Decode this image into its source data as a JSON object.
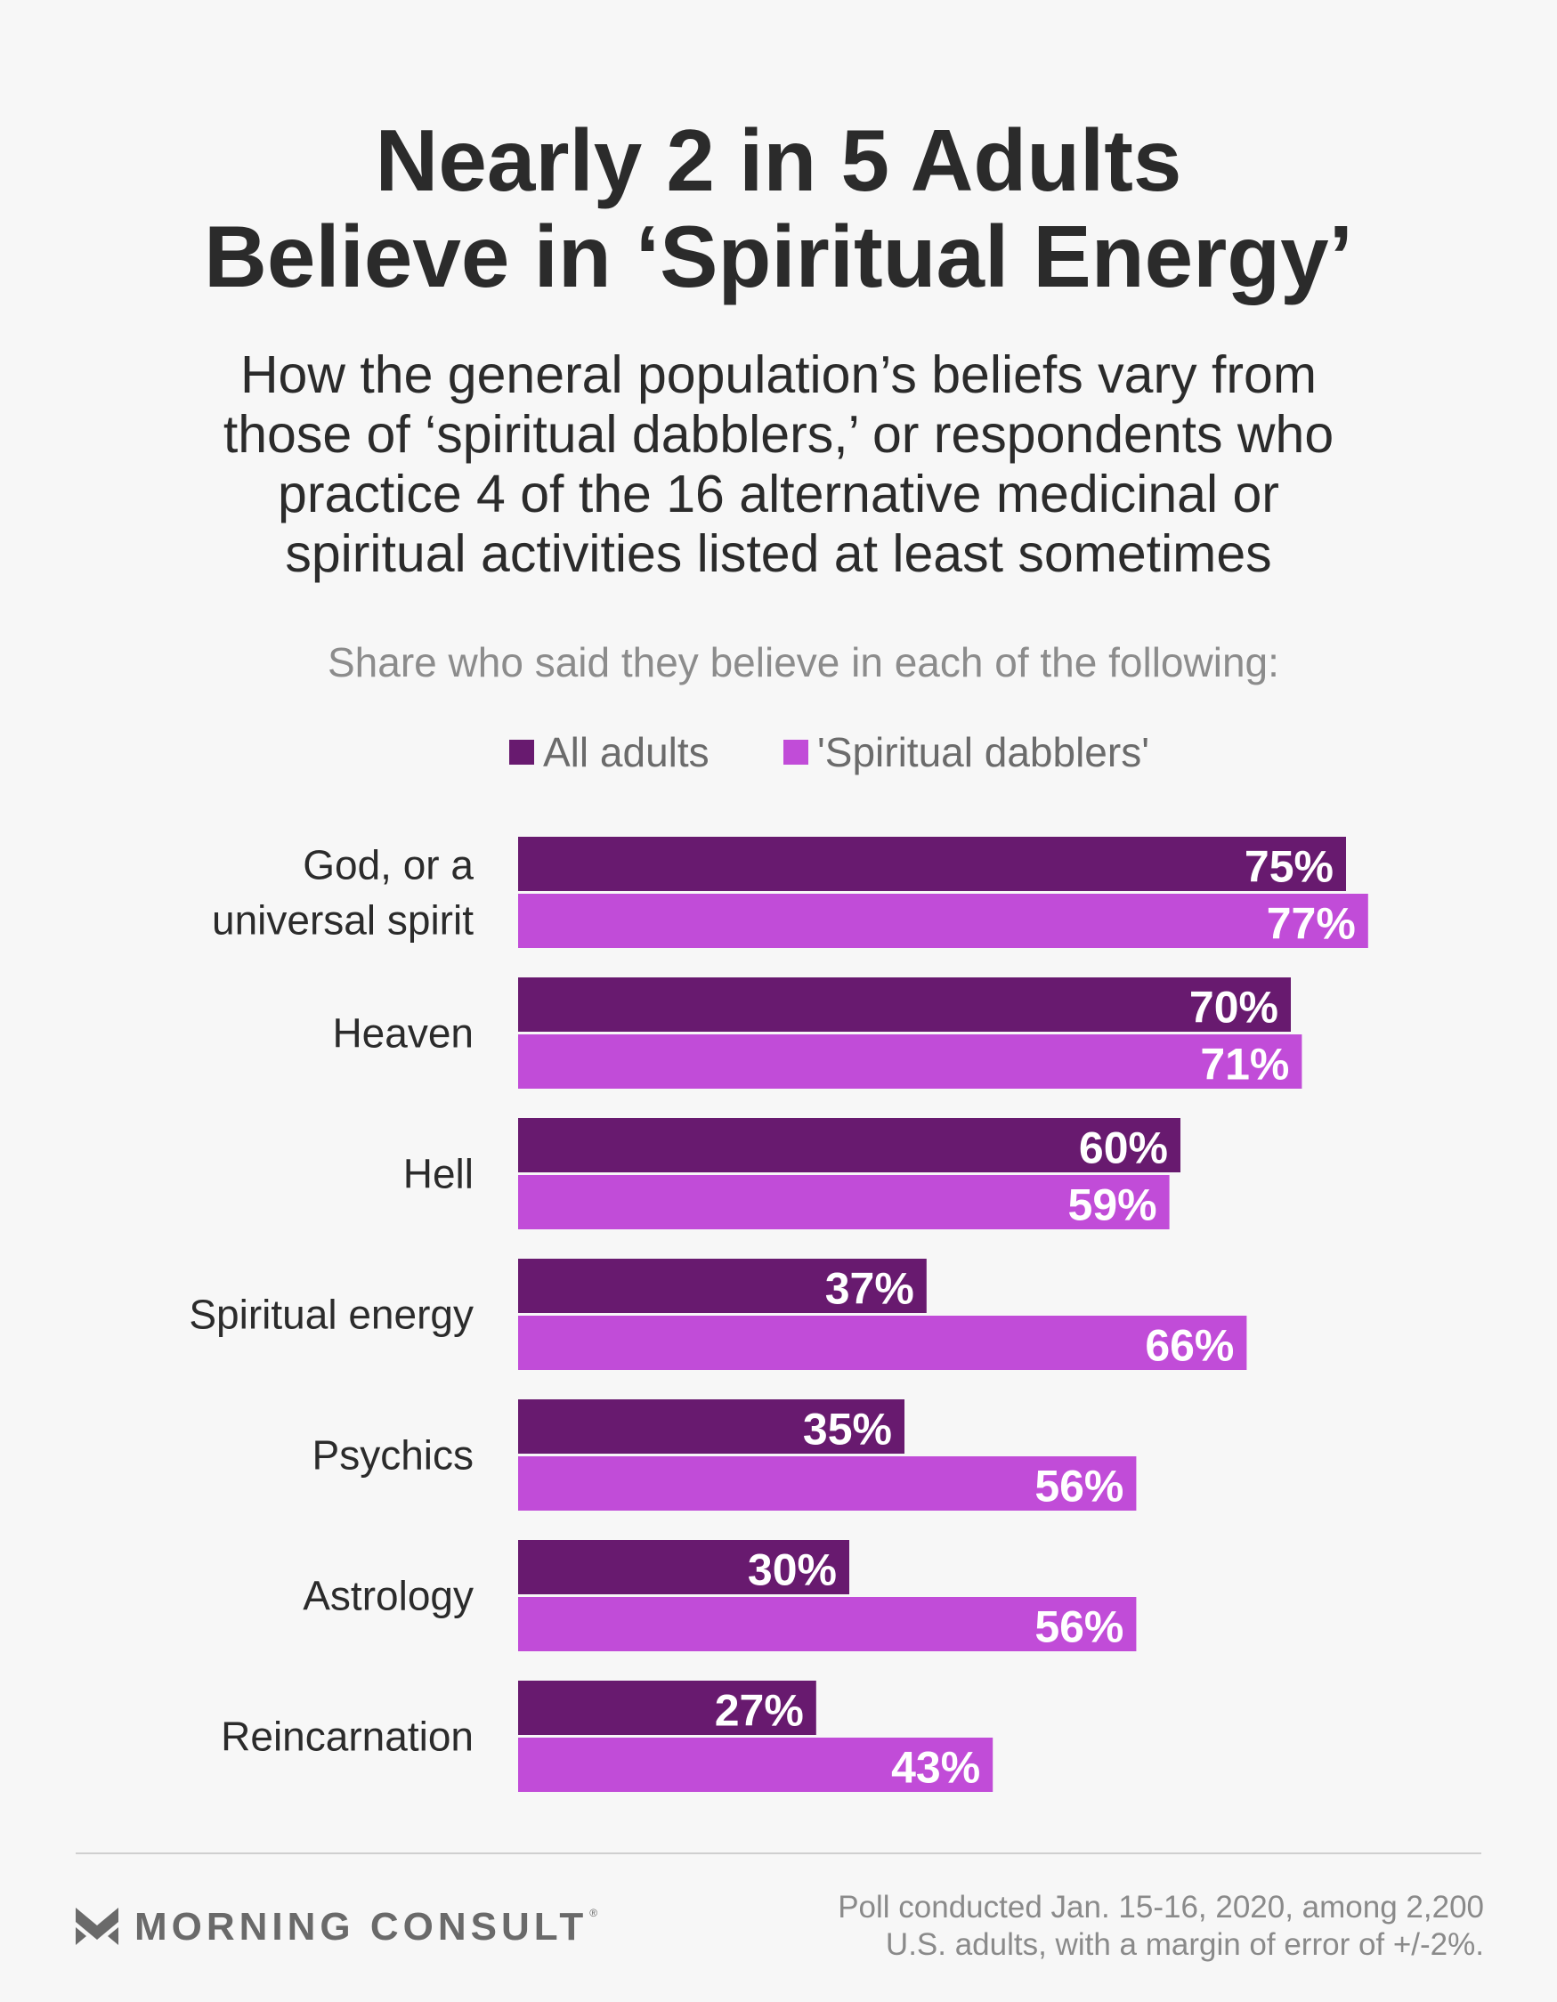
{
  "header": {
    "title_line1": "Nearly 2 in 5 Adults",
    "title_line2": "Believe in ‘Spiritual Energy’",
    "subtitle_line1": "How the general population’s beliefs vary from",
    "subtitle_line2": "those of ‘spiritual dabblers,’ or respondents who",
    "subtitle_line3": "practice 4 of the 16 alternative medicinal or",
    "subtitle_line4": "spiritual activities listed at least sometimes",
    "prompt": "Share who said they believe in each of the following:"
  },
  "colors": {
    "all_adults": "#681a6f",
    "spiritual_dabblers": "#c14cd8",
    "text_dark": "#2b2b2b",
    "muted": "#8c8c8c"
  },
  "chart_data": {
    "type": "bar",
    "orientation": "horizontal",
    "categories": [
      [
        "God, or a",
        "universal spirit"
      ],
      [
        "Heaven"
      ],
      [
        "Hell"
      ],
      [
        "Spiritual energy"
      ],
      [
        "Psychics"
      ],
      [
        "Astrology"
      ],
      [
        "Reincarnation"
      ]
    ],
    "series": [
      {
        "name": "All adults",
        "values": [
          75,
          70,
          60,
          37,
          35,
          30,
          27
        ],
        "labels": [
          "75%",
          "70%",
          "60%",
          "37%",
          "35%",
          "30%",
          "27%"
        ]
      },
      {
        "name": "'Spiritual dabblers'",
        "values": [
          77,
          71,
          59,
          66,
          56,
          56,
          43
        ],
        "labels": [
          "77%",
          "71%",
          "59%",
          "66%",
          "56%",
          "56%",
          "43%"
        ]
      }
    ],
    "value_unit": "%",
    "xlim": [
      0,
      100
    ],
    "grid": false,
    "legend_position": "top"
  },
  "footer": {
    "brand": "MORNING CONSULT",
    "registered_mark": "®",
    "note_line1": "Poll conducted Jan. 15-16, 2020, among 2,200",
    "note_line2": "U.S. adults, with a margin of error of +/-2%."
  }
}
